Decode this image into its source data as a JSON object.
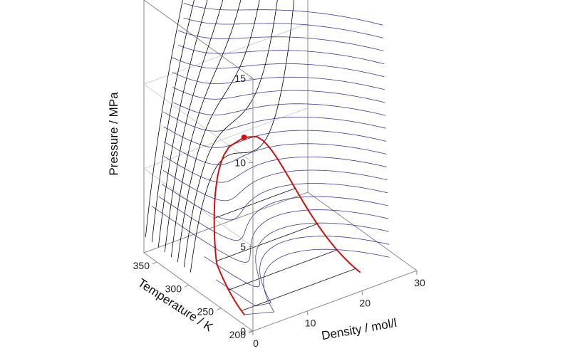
{
  "chart_data": {
    "type": "surface-3d",
    "title": "",
    "axes": {
      "density": {
        "label": "Density / mol/l",
        "range": [
          0,
          30
        ],
        "ticks": [
          "0",
          "10",
          "20",
          "30"
        ]
      },
      "temperature": {
        "label": "Temperature / K",
        "range": [
          200,
          370
        ],
        "ticks": [
          "200",
          "250",
          "300",
          "350"
        ]
      },
      "pressure": {
        "label": "Pressure / MPa",
        "range": [
          0,
          15
        ],
        "ticks": [
          "0",
          "5",
          "10",
          "15"
        ]
      }
    },
    "surface": {
      "isotherm_color": "#000000",
      "isobar_color": "#1a1a8c"
    },
    "coexistence_curve": {
      "color": "#cc1111",
      "critical_point": {
        "density": 10.6,
        "temperature": 304.1,
        "pressure": 7.38
      }
    },
    "grid": true
  }
}
